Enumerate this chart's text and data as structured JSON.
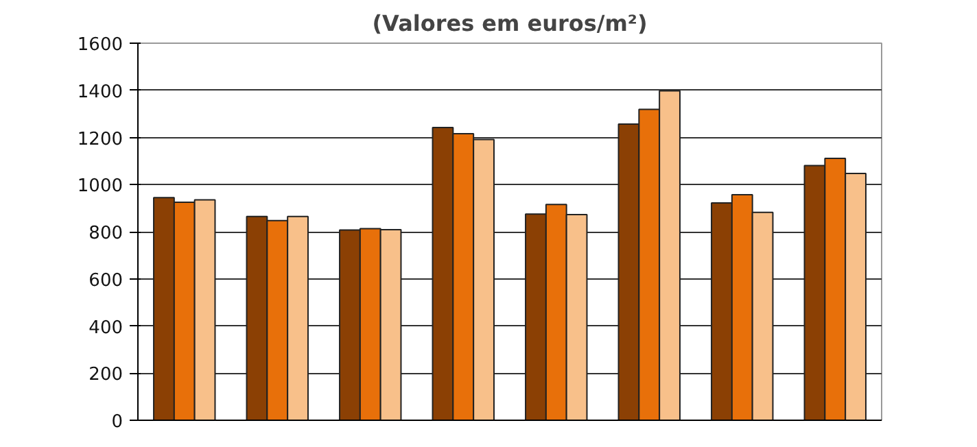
{
  "chart_data": {
    "type": "bar",
    "title": "(Valores em euros/m²)",
    "categories": [
      null,
      null,
      null,
      null,
      null,
      null,
      null,
      null
    ],
    "series": [
      {
        "color": "#8b4004",
        "values": [
          945,
          865,
          807,
          1242,
          875,
          1257,
          922,
          1081
        ]
      },
      {
        "color": "#e8700a",
        "values": [
          925,
          847,
          813,
          1216,
          916,
          1319,
          957,
          1111
        ]
      },
      {
        "color": "#f8c08a",
        "values": [
          935,
          865,
          809,
          1191,
          873,
          1398,
          882,
          1047
        ]
      }
    ],
    "ylim": [
      0,
      1600
    ],
    "yticks": [
      0,
      200,
      400,
      600,
      800,
      1000,
      1200,
      1400,
      1600
    ],
    "grid": "y"
  }
}
